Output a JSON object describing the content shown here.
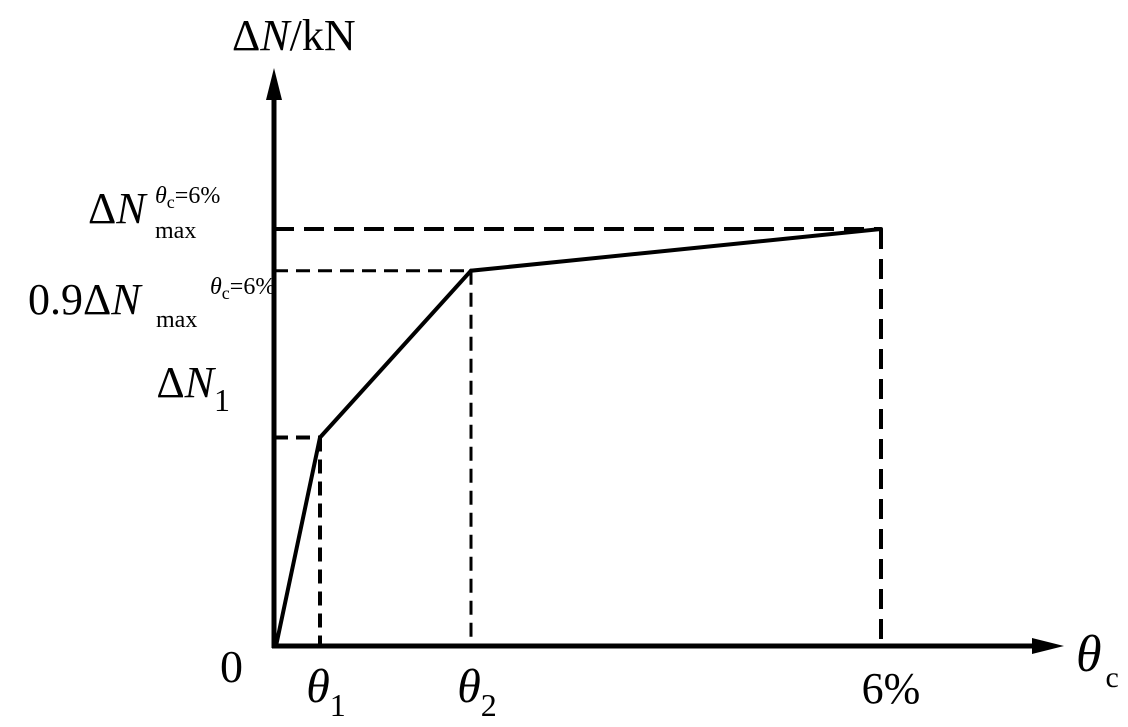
{
  "chart_data": {
    "type": "line",
    "title": "",
    "ylabel": {
      "delta": "Δ",
      "var": "N",
      "unit": "/kN"
    },
    "xlabel": {
      "var": "θ",
      "sub": "c"
    },
    "origin_label": "0",
    "x": [
      "0",
      "θ1",
      "θ2",
      "6%"
    ],
    "series": [
      {
        "values": [
          0,
          0.5,
          0.9,
          1.0
        ]
      }
    ],
    "x_ticks": [
      {
        "var": "θ",
        "sub": "1"
      },
      {
        "var": "θ",
        "sub": "2"
      },
      {
        "text": "6%"
      }
    ],
    "y_ticks": [
      {
        "prefix": "",
        "delta": "Δ",
        "var": "N",
        "sub": "1",
        "sup": ""
      },
      {
        "prefix": "0.9",
        "delta": "Δ",
        "var": "N",
        "sub": "max",
        "sup": "θ",
        "sup_sub": "c",
        "sup_rest": "=6%"
      },
      {
        "prefix": "",
        "delta": "Δ",
        "var": "N",
        "sub": "max",
        "sup": "θ",
        "sup_sub": "c",
        "sup_rest": "=6%"
      }
    ],
    "guides": "dashed",
    "grid": false,
    "legend": "none",
    "colors": {
      "line": "#000000",
      "axes": "#000000"
    }
  }
}
